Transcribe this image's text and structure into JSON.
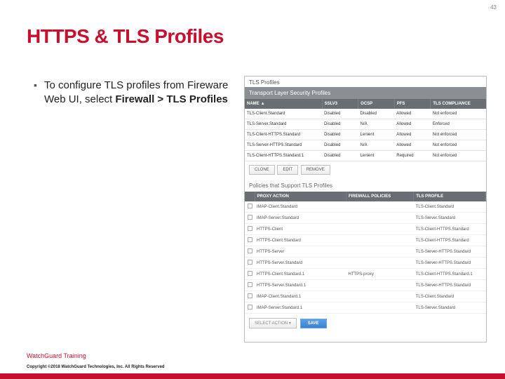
{
  "slide": {
    "number": "43",
    "title": "HTTPS & TLS Profiles",
    "bullet_prefix": "To configure TLS profiles from Fireware Web UI, select ",
    "bullet_bold": "Firewall > TLS Profiles",
    "footer_tag": "WatchGuard Training",
    "copyright": "Copyright ©2018 WatchGuard Technologies, Inc. All Rights Reserved"
  },
  "panel": {
    "title": "TLS Profiles",
    "subtitle": "Transport Layer Security Profiles",
    "columns": {
      "name": "NAME",
      "sslv3": "SSLV3",
      "ocsp": "OCSP",
      "pfs": "PFS",
      "compliance": "TLS COMPLIANCE"
    },
    "rows": [
      {
        "name": "TLS-Client.Standard",
        "ssl": "Disabled",
        "ocsp": "Disabled",
        "pfs": "Allowed",
        "comp": "Not enforced",
        "red": false
      },
      {
        "name": "TLS-Server.Standard",
        "ssl": "Disabled",
        "ocsp": "N/A",
        "pfs": "Allowed",
        "comp": "Enforced",
        "red": false
      },
      {
        "name": "TLS-Client-HTTPS.Standard",
        "ssl": "Disabled",
        "ocsp": "Lenient",
        "pfs": "Allowed",
        "comp": "Not enforced",
        "red": true
      },
      {
        "name": "TLS-Server-HTTPS.Standard",
        "ssl": "Disabled",
        "ocsp": "N/A",
        "pfs": "Allowed",
        "comp": "Not enforced",
        "red": true
      },
      {
        "name": "TLS-Client-HTTPS.Standard.1",
        "ssl": "Disabled",
        "ocsp": "Lenient",
        "pfs": "Required",
        "comp": "Not enforced",
        "red": true
      }
    ],
    "buttons": {
      "clone": "CLONE",
      "edit": "EDIT",
      "remove": "REMOVE"
    },
    "policies_title": "Policies that Support TLS Profiles",
    "policies_columns": {
      "proxy": "PROXY ACTION",
      "firewall": "FIREWALL POLICIES",
      "profile": "TLS PROFILE"
    },
    "policies": [
      {
        "proxy": "IMAP-Client.Standard",
        "fw": "",
        "profile": "TLS-Client.Standard"
      },
      {
        "proxy": "IMAP-Server.Standard",
        "fw": "",
        "profile": "TLS-Server.Standard"
      },
      {
        "proxy": "HTTPS-Client",
        "fw": "",
        "profile": "TLS-Client-HTTPS.Standard"
      },
      {
        "proxy": "HTTPS-Client.Standard",
        "fw": "",
        "profile": "TLS-Client-HTTPS.Standard"
      },
      {
        "proxy": "HTTPS-Server",
        "fw": "",
        "profile": "TLS-Server-HTTPS.Standard"
      },
      {
        "proxy": "HTTPS-Server.Standard",
        "fw": "",
        "profile": "TLS-Server-HTTPS.Standard"
      },
      {
        "proxy": "HTTPS-Client.Standard.1",
        "fw": "HTTPS-proxy",
        "profile": "TLS-Client-HTTPS.Standard.1"
      },
      {
        "proxy": "HTTPS-Server.Standard.1",
        "fw": "",
        "profile": "TLS-Server-HTTPS.Standard"
      },
      {
        "proxy": "IMAP-Client.Standard.1",
        "fw": "",
        "profile": "TLS-Client.Standard"
      },
      {
        "proxy": "IMAP-Server.Standard.1",
        "fw": "",
        "profile": "TLS-Server.Standard"
      }
    ],
    "bottom": {
      "select": "SELECT ACTION",
      "save": "SAVE"
    }
  },
  "colors": {
    "brand_red": "#c8102e",
    "header_grey": "#6a6e72"
  }
}
